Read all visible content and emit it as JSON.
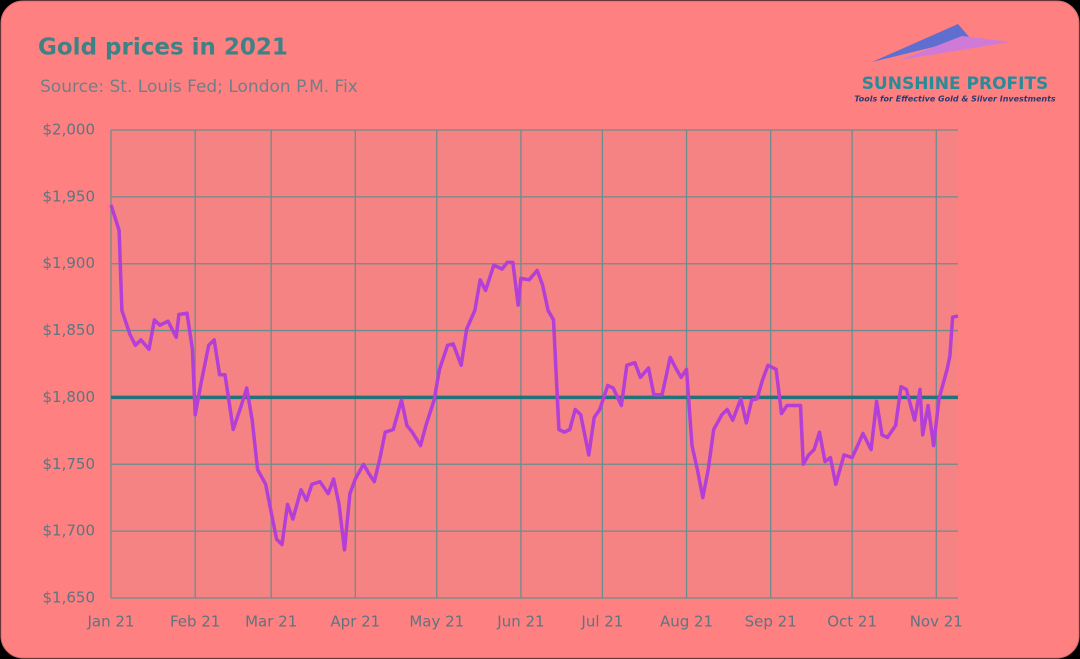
{
  "chart_data": {
    "type": "line",
    "title": "Gold prices in 2021",
    "subtitle": "Source: St. Louis Fed; London P.M. Fix",
    "x": [
      0,
      3,
      4,
      7,
      9,
      11,
      14,
      16,
      18,
      21,
      24,
      25,
      28,
      30,
      31,
      33,
      36,
      38,
      40,
      42,
      45,
      48,
      50,
      52,
      54,
      57,
      59,
      61,
      63,
      65,
      67,
      70,
      72,
      74,
      77,
      80,
      82,
      84,
      86,
      88,
      90,
      93,
      95,
      97,
      99,
      101,
      104,
      107,
      109,
      111,
      114,
      116,
      119,
      121,
      124,
      126,
      129,
      131,
      134,
      136,
      138,
      141,
      144,
      146,
      148,
      150,
      151,
      154,
      157,
      159,
      161,
      163,
      165,
      167,
      169,
      171,
      173,
      176,
      178,
      180,
      183,
      185,
      188,
      190,
      193,
      195,
      198,
      200,
      203,
      206,
      208,
      210,
      212,
      214,
      216,
      218,
      220,
      222,
      225,
      227,
      229,
      232,
      234,
      236,
      238,
      240,
      242,
      245,
      247,
      249,
      252,
      254,
      255,
      257,
      259,
      261,
      263,
      265,
      267,
      270,
      273,
      275,
      277,
      280,
      282,
      284,
      286,
      289,
      291,
      293,
      296,
      298,
      299,
      301,
      303,
      305,
      308,
      309,
      310,
      312
    ],
    "series": [
      {
        "name": "Gold price",
        "color": "#b43fd6",
        "values": [
          1944,
          1925,
          1865,
          1847,
          1839,
          1843,
          1836,
          1858,
          1854,
          1857,
          1845,
          1862,
          1863,
          1836,
          1787,
          1809,
          1839,
          1843,
          1817,
          1817,
          1776,
          1794,
          1807,
          1783,
          1746,
          1735,
          1714,
          1694,
          1690,
          1720,
          1709,
          1731,
          1723,
          1735,
          1737,
          1728,
          1739,
          1720,
          1686,
          1728,
          1739,
          1750,
          1743,
          1737,
          1754,
          1774,
          1776,
          1798,
          1779,
          1774,
          1764,
          1779,
          1798,
          1821,
          1839,
          1840,
          1824,
          1851,
          1865,
          1888,
          1880,
          1899,
          1896,
          1901,
          1901,
          1869,
          1889,
          1888,
          1895,
          1884,
          1865,
          1858,
          1776,
          1774,
          1776,
          1791,
          1787,
          1757,
          1785,
          1791,
          1809,
          1807,
          1794,
          1824,
          1826,
          1815,
          1822,
          1802,
          1802,
          1830,
          1822,
          1815,
          1821,
          1764,
          1746,
          1725,
          1746,
          1776,
          1787,
          1791,
          1783,
          1799,
          1781,
          1798,
          1799,
          1813,
          1824,
          1821,
          1788,
          1794,
          1794,
          1794,
          1750,
          1757,
          1761,
          1774,
          1752,
          1755,
          1735,
          1757,
          1755,
          1764,
          1773,
          1761,
          1797,
          1772,
          1770,
          1779,
          1808,
          1806,
          1783,
          1806,
          1772,
          1794,
          1764,
          1799,
          1821,
          1831,
          1860,
          1861
        ]
      }
    ],
    "reference_line": {
      "value": 1800,
      "color": "#1f7379"
    },
    "xlim": [
      0,
      312
    ],
    "xticks": [
      {
        "value": 0,
        "label": "Jan 21"
      },
      {
        "value": 31,
        "label": "Feb 21"
      },
      {
        "value": 59,
        "label": "Mar 21"
      },
      {
        "value": 90,
        "label": "Apr 21"
      },
      {
        "value": 120,
        "label": "May 21"
      },
      {
        "value": 151,
        "label": "Jun 21"
      },
      {
        "value": 181,
        "label": "Jul 21"
      },
      {
        "value": 212,
        "label": "Aug 21"
      },
      {
        "value": 243,
        "label": "Sep 21"
      },
      {
        "value": 273,
        "label": "Oct 21"
      },
      {
        "value": 304,
        "label": "Nov 21"
      }
    ],
    "ylim": [
      1650,
      2000
    ],
    "yticks": [
      {
        "value": 1650,
        "label": "$1,650"
      },
      {
        "value": 1700,
        "label": "$1,700"
      },
      {
        "value": 1750,
        "label": "$1,750"
      },
      {
        "value": 1800,
        "label": "$1,800"
      },
      {
        "value": 1850,
        "label": "$1,850"
      },
      {
        "value": 1900,
        "label": "$1,900"
      },
      {
        "value": 1950,
        "label": "$1,950"
      },
      {
        "value": 2000,
        "label": "$2,000"
      }
    ],
    "grid": true
  },
  "logo": {
    "name": "SUNSHINE PROFITS",
    "tagline": "Tools for Effective Gold & Silver Investments"
  }
}
